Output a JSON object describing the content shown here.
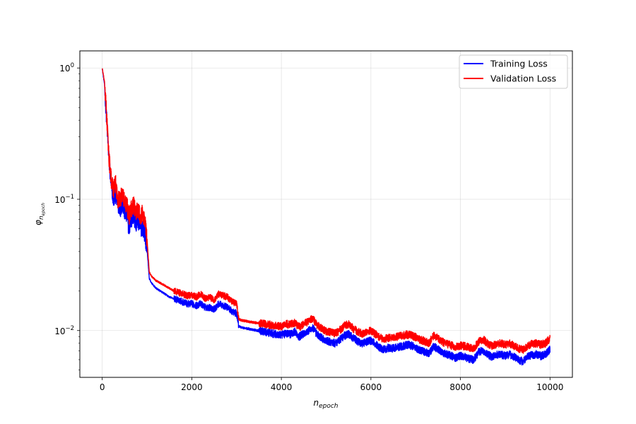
{
  "chart_data": {
    "type": "line",
    "title": "",
    "xlabel_base": "n",
    "xlabel_sub": "epoch",
    "ylabel_base": "φ",
    "ylabel_sub": "n",
    "ylabel_subsub": "epoch",
    "xscale": "linear",
    "yscale": "log",
    "xlim": [
      -500,
      10500
    ],
    "ylim": [
      0.0044,
      1.35
    ],
    "xticks": [
      0,
      2000,
      4000,
      6000,
      8000,
      10000
    ],
    "xtick_labels": [
      "0",
      "2000",
      "4000",
      "6000",
      "8000",
      "10000"
    ],
    "yticks": [
      0.01,
      0.1,
      1
    ],
    "ytick_labels": [
      {
        "base": "10",
        "exp": "−2"
      },
      {
        "base": "10",
        "exp": "−1"
      },
      {
        "base": "10",
        "exp": "0"
      }
    ],
    "grid": true,
    "legend_position": "top-right",
    "series": [
      {
        "name": "Training Loss",
        "color": "#0000ff",
        "x": [
          0,
          50,
          100,
          150,
          200,
          250,
          300,
          350,
          400,
          450,
          500,
          550,
          600,
          650,
          700,
          750,
          800,
          850,
          900,
          950,
          1000,
          1050,
          1100,
          1200,
          1300,
          1400,
          1500,
          1600,
          1700,
          1800,
          1900,
          2000,
          2100,
          2200,
          2300,
          2400,
          2500,
          2600,
          2700,
          2800,
          2900,
          3000,
          3050,
          3100,
          3200,
          3400,
          3600,
          3800,
          4000,
          4100,
          4200,
          4300,
          4400,
          4500,
          4600,
          4700,
          4800,
          4900,
          5000,
          5100,
          5200,
          5300,
          5400,
          5500,
          5600,
          5700,
          5800,
          5900,
          6000,
          6100,
          6200,
          6300,
          6400,
          6500,
          6600,
          6700,
          6800,
          6900,
          7000,
          7100,
          7200,
          7300,
          7400,
          7500,
          7600,
          7700,
          7800,
          7900,
          8000,
          8100,
          8200,
          8300,
          8400,
          8500,
          8600,
          8700,
          8800,
          8900,
          9000,
          9100,
          9200,
          9300,
          9400,
          9500,
          9600,
          9700,
          9800,
          9900,
          10000
        ],
        "y": [
          1.0,
          0.75,
          0.4,
          0.2,
          0.13,
          0.1,
          0.11,
          0.09,
          0.085,
          0.095,
          0.08,
          0.075,
          0.06,
          0.07,
          0.075,
          0.065,
          0.07,
          0.06,
          0.062,
          0.055,
          0.042,
          0.025,
          0.023,
          0.021,
          0.02,
          0.019,
          0.018,
          0.0175,
          0.017,
          0.0165,
          0.016,
          0.016,
          0.0155,
          0.016,
          0.015,
          0.015,
          0.0145,
          0.016,
          0.0155,
          0.015,
          0.014,
          0.0135,
          0.0108,
          0.0106,
          0.0104,
          0.0101,
          0.0098,
          0.0095,
          0.0092,
          0.0095,
          0.0094,
          0.0098,
          0.009,
          0.0095,
          0.0099,
          0.0105,
          0.0093,
          0.0088,
          0.0083,
          0.0082,
          0.008,
          0.0085,
          0.0091,
          0.0094,
          0.0088,
          0.0083,
          0.008,
          0.0082,
          0.0084,
          0.0079,
          0.0074,
          0.0072,
          0.0074,
          0.0073,
          0.0075,
          0.0076,
          0.0078,
          0.0077,
          0.0074,
          0.0071,
          0.0069,
          0.0067,
          0.0076,
          0.0072,
          0.0068,
          0.0066,
          0.0064,
          0.0062,
          0.0064,
          0.0063,
          0.0061,
          0.006,
          0.0068,
          0.0071,
          0.0066,
          0.0063,
          0.0065,
          0.0066,
          0.0064,
          0.0066,
          0.0063,
          0.006,
          0.0058,
          0.0063,
          0.0065,
          0.0066,
          0.0064,
          0.0066,
          0.0072
        ]
      },
      {
        "name": "Validation Loss",
        "color": "#ff0000",
        "x": [
          0,
          50,
          100,
          150,
          200,
          250,
          300,
          350,
          400,
          450,
          500,
          550,
          600,
          650,
          700,
          750,
          800,
          850,
          900,
          950,
          1000,
          1050,
          1100,
          1200,
          1300,
          1400,
          1500,
          1600,
          1700,
          1800,
          1900,
          2000,
          2100,
          2200,
          2300,
          2400,
          2500,
          2600,
          2700,
          2800,
          2900,
          3000,
          3050,
          3100,
          3200,
          3400,
          3600,
          3800,
          4000,
          4100,
          4200,
          4300,
          4400,
          4500,
          4600,
          4700,
          4800,
          4900,
          5000,
          5100,
          5200,
          5300,
          5400,
          5500,
          5600,
          5700,
          5800,
          5900,
          6000,
          6100,
          6200,
          6300,
          6400,
          6500,
          6600,
          6700,
          6800,
          6900,
          7000,
          7100,
          7200,
          7300,
          7400,
          7500,
          7600,
          7700,
          7800,
          7900,
          8000,
          8100,
          8200,
          8300,
          8400,
          8500,
          8600,
          8700,
          8800,
          8900,
          9000,
          9100,
          9200,
          9300,
          9400,
          9500,
          9600,
          9700,
          9800,
          9900,
          10000
        ],
        "y": [
          1.0,
          0.78,
          0.42,
          0.21,
          0.14,
          0.12,
          0.13,
          0.1,
          0.1,
          0.11,
          0.095,
          0.09,
          0.075,
          0.085,
          0.09,
          0.08,
          0.085,
          0.075,
          0.078,
          0.07,
          0.05,
          0.028,
          0.026,
          0.024,
          0.023,
          0.022,
          0.021,
          0.02,
          0.0195,
          0.019,
          0.0185,
          0.0185,
          0.018,
          0.019,
          0.0175,
          0.018,
          0.017,
          0.019,
          0.0185,
          0.018,
          0.0165,
          0.016,
          0.0122,
          0.012,
          0.0118,
          0.0115,
          0.0112,
          0.011,
          0.0107,
          0.0112,
          0.0111,
          0.0115,
          0.0106,
          0.0112,
          0.0117,
          0.0124,
          0.011,
          0.0104,
          0.0098,
          0.0097,
          0.0095,
          0.01,
          0.0108,
          0.0112,
          0.0104,
          0.0098,
          0.0095,
          0.0097,
          0.01,
          0.0094,
          0.0088,
          0.0086,
          0.0088,
          0.0087,
          0.009,
          0.0091,
          0.0093,
          0.0092,
          0.0089,
          0.0085,
          0.0083,
          0.008,
          0.0092,
          0.0087,
          0.0082,
          0.0079,
          0.0077,
          0.0075,
          0.0077,
          0.0076,
          0.0074,
          0.0073,
          0.0082,
          0.0086,
          0.008,
          0.0076,
          0.0079,
          0.008,
          0.0078,
          0.008,
          0.0076,
          0.0073,
          0.0071,
          0.0077,
          0.0079,
          0.008,
          0.0078,
          0.008,
          0.0087
        ]
      }
    ]
  }
}
